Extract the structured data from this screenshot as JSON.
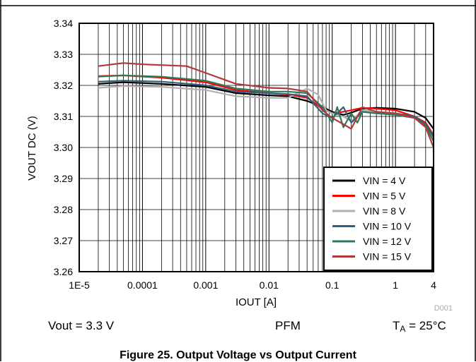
{
  "chart_data": {
    "type": "line",
    "xlabel": "IOUT [A]",
    "ylabel": "VOUT DC (V)",
    "xscale": "log",
    "xlim": [
      1e-05,
      4
    ],
    "ylim": [
      3.26,
      3.34
    ],
    "x_ticks": [
      1e-05,
      0.0001,
      0.001,
      0.01,
      0.1,
      1,
      4
    ],
    "x_tick_labels": [
      "1E-5",
      "0.0001",
      "0.001",
      "0.01",
      "0.1",
      "1",
      "4"
    ],
    "y_ticks": [
      3.26,
      3.27,
      3.28,
      3.29,
      3.3,
      3.31,
      3.32,
      3.33,
      3.34
    ],
    "y_tick_labels": [
      "3.26",
      "3.27",
      "3.28",
      "3.29",
      "3.30",
      "3.31",
      "3.32",
      "3.33",
      "3.34"
    ],
    "grid": true,
    "legend_position": "bottom-right",
    "watermark": "D001",
    "series": [
      {
        "name": "VIN = 4 V",
        "color": "#000000",
        "x": [
          2e-05,
          5e-05,
          0.0002,
          0.001,
          0.003,
          0.01,
          0.02,
          0.04,
          0.07,
          0.1,
          0.15,
          0.2,
          0.3,
          0.5,
          1,
          2,
          3,
          4
        ],
        "y": [
          3.3205,
          3.321,
          3.3205,
          3.3195,
          3.3175,
          3.3168,
          3.3165,
          3.315,
          3.313,
          3.3115,
          3.3105,
          3.3112,
          3.3125,
          3.3128,
          3.3125,
          3.3115,
          3.3095,
          3.306
        ]
      },
      {
        "name": "VIN = 5 V",
        "color": "#ff0000",
        "x": [
          2e-05,
          5e-05,
          0.0002,
          0.001,
          0.003,
          0.01,
          0.02,
          0.04,
          0.07,
          0.1,
          0.15,
          0.2,
          0.3,
          0.5,
          1,
          2,
          3,
          4
        ],
        "y": [
          3.323,
          3.3232,
          3.3225,
          3.321,
          3.3185,
          3.3175,
          3.317,
          3.316,
          3.3125,
          3.311,
          3.3115,
          3.312,
          3.3128,
          3.3125,
          3.312,
          3.31,
          3.308,
          3.304
        ]
      },
      {
        "name": "VIN = 8 V",
        "color": "#b0b0b0",
        "x": [
          2e-05,
          5e-05,
          0.0002,
          0.001,
          0.003,
          0.01,
          0.02,
          0.04,
          0.06,
          0.08,
          0.1,
          0.15,
          0.2,
          0.3,
          0.5,
          1,
          2,
          3,
          4
        ],
        "y": [
          3.3192,
          3.3198,
          3.3195,
          3.3185,
          3.3165,
          3.316,
          3.316,
          3.319,
          3.317,
          3.312,
          3.311,
          3.31,
          3.3085,
          3.312,
          3.3115,
          3.311,
          3.3095,
          3.307,
          3.303
        ]
      },
      {
        "name": "VIN = 10 V",
        "color": "#2e5f7f",
        "x": [
          2e-05,
          5e-05,
          0.0002,
          0.001,
          0.003,
          0.01,
          0.02,
          0.04,
          0.07,
          0.1,
          0.15,
          0.2,
          0.3,
          0.5,
          1,
          2,
          3,
          4
        ],
        "y": [
          3.3212,
          3.3215,
          3.3212,
          3.32,
          3.318,
          3.3175,
          3.3172,
          3.3165,
          3.311,
          3.3095,
          3.313,
          3.308,
          3.3115,
          3.311,
          3.311,
          3.31,
          3.3075,
          3.3035
        ]
      },
      {
        "name": "VIN = 12 V",
        "color": "#2e7a55",
        "x": [
          2e-05,
          5e-05,
          0.0002,
          0.001,
          0.003,
          0.01,
          0.02,
          0.04,
          0.07,
          0.1,
          0.12,
          0.15,
          0.2,
          0.25,
          0.3,
          0.5,
          1,
          2,
          3,
          4
        ],
        "y": [
          3.3228,
          3.3232,
          3.3228,
          3.3215,
          3.319,
          3.318,
          3.318,
          3.3175,
          3.313,
          3.308,
          3.313,
          3.3065,
          3.311,
          3.308,
          3.3115,
          3.311,
          3.3105,
          3.3095,
          3.307,
          3.302
        ]
      },
      {
        "name": "VIN = 15 V",
        "color": "#b03a3a",
        "x": [
          2e-05,
          5e-05,
          0.0001,
          0.0005,
          0.001,
          0.003,
          0.01,
          0.02,
          0.04,
          0.07,
          0.1,
          0.15,
          0.2,
          0.3,
          0.5,
          1,
          2,
          3,
          4
        ],
        "y": [
          3.3262,
          3.3272,
          3.3268,
          3.3262,
          3.324,
          3.3205,
          3.3192,
          3.319,
          3.318,
          3.312,
          3.3095,
          3.3075,
          3.306,
          3.313,
          3.3115,
          3.311,
          3.3095,
          3.3065,
          3.3
        ]
      }
    ]
  },
  "conditions": {
    "vout": "Vout = 3.3 V",
    "mode": "PFM",
    "temp_prefix": "T",
    "temp_sub": "A",
    "temp_suffix": " = 25°C"
  },
  "caption": "Figure 25. Output Voltage vs Output Current"
}
